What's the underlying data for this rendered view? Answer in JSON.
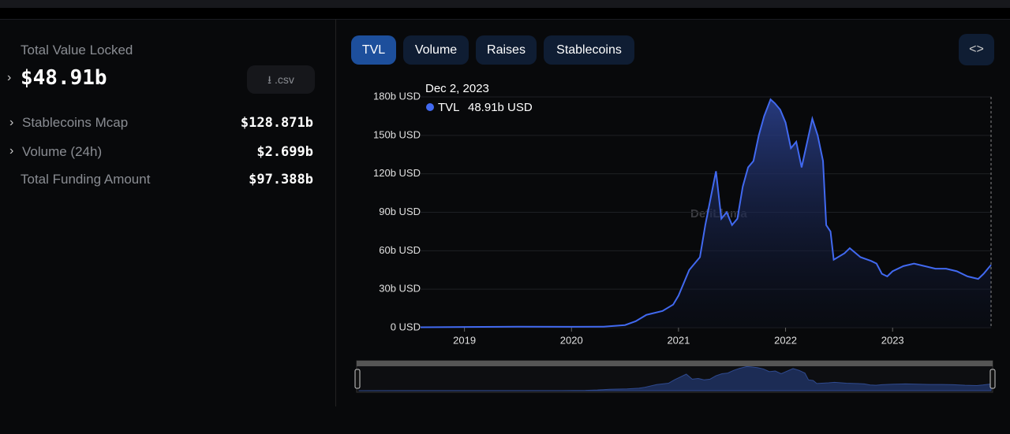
{
  "sidebar": {
    "title": "Total Value Locked",
    "value": "$48.91b",
    "csv": ".csv",
    "rows": [
      [
        "Stablecoins Mcap",
        "$128.871b"
      ],
      [
        "Volume (24h)",
        "$2.699b"
      ],
      [
        "Total Funding Amount",
        "$97.388b"
      ]
    ]
  },
  "tabs": [
    "TVL",
    "Volume",
    "Raises",
    "Stablecoins"
  ],
  "watermark": "DefiLlama",
  "tooltip": {
    "date": "Dec 2, 2023",
    "name": "TVL",
    "value": "48.91b USD"
  },
  "chart_data": {
    "type": "area",
    "x": [
      2018.59,
      2019,
      2019.5,
      2020,
      2020.3,
      2020.5,
      2020.6,
      2020.7,
      2020.85,
      2020.95,
      2021.0,
      2021.1,
      2021.2,
      2021.25,
      2021.35,
      2021.4,
      2021.45,
      2021.5,
      2021.55,
      2021.6,
      2021.65,
      2021.7,
      2021.75,
      2021.8,
      2021.86,
      2021.9,
      2021.95,
      2022.0,
      2022.05,
      2022.1,
      2022.15,
      2022.25,
      2022.3,
      2022.35,
      2022.38,
      2022.42,
      2022.45,
      2022.55,
      2022.6,
      2022.7,
      2022.8,
      2022.85,
      2022.9,
      2022.95,
      2023.0,
      2023.1,
      2023.2,
      2023.3,
      2023.4,
      2023.5,
      2023.6,
      2023.7,
      2023.8,
      2023.85,
      2023.9,
      2023.92
    ],
    "series": [
      {
        "name": "TVL",
        "color": "#4169f0",
        "values": [
          0.3,
          0.5,
          0.8,
          0.7,
          0.8,
          2,
          5,
          10,
          13,
          18,
          25,
          45,
          55,
          80,
          122,
          85,
          90,
          80,
          85,
          110,
          125,
          130,
          150,
          165,
          178,
          175,
          170,
          160,
          140,
          145,
          125,
          163,
          150,
          130,
          80,
          75,
          53,
          58,
          62,
          55,
          52,
          50,
          42,
          40,
          44,
          48,
          50,
          48,
          46,
          46,
          44,
          40,
          38,
          42,
          47,
          48.91
        ]
      }
    ],
    "xlim": [
      2018.59,
      2023.92
    ],
    "xticks": [
      2019,
      2020,
      2021,
      2022,
      2023
    ],
    "ylim": [
      0,
      180
    ],
    "yticks": [
      {
        "value": 0,
        "label": "0 USD"
      },
      {
        "value": 30,
        "label": "30b USD"
      },
      {
        "value": 60,
        "label": "60b USD"
      },
      {
        "value": 90,
        "label": "90b USD"
      },
      {
        "value": 120,
        "label": "120b USD"
      },
      {
        "value": 150,
        "label": "150b USD"
      },
      {
        "value": 180,
        "label": "180b USD"
      }
    ],
    "grid": true
  }
}
